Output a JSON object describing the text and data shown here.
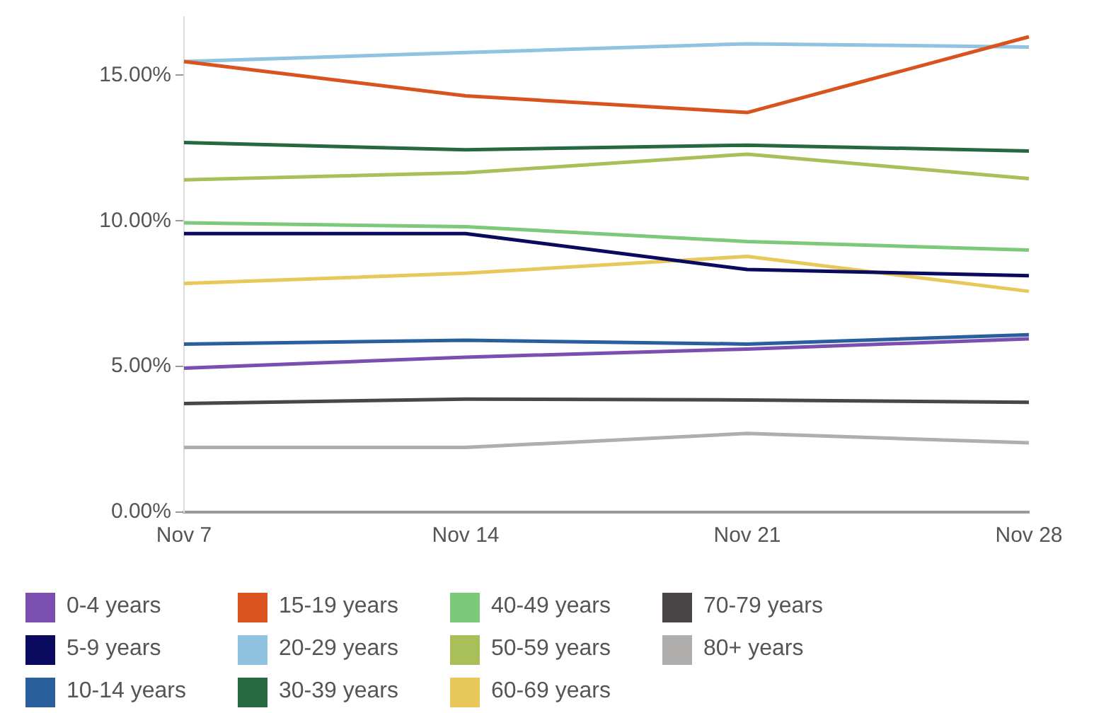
{
  "chart_data": {
    "type": "line",
    "categories": [
      "Nov 7",
      "Nov 14",
      "Nov 21",
      "Nov 28"
    ],
    "ylim": [
      0,
      17
    ],
    "yticks": [
      {
        "value": 0,
        "label": "0.00%"
      },
      {
        "value": 5,
        "label": "5.00%"
      },
      {
        "value": 10,
        "label": "10.00%"
      },
      {
        "value": 15,
        "label": "15.00%"
      }
    ],
    "legend": "bottom",
    "series": [
      {
        "name": "0-4 years",
        "color": "#7b4fb0",
        "values": [
          4.94,
          5.32,
          5.6,
          5.95
        ]
      },
      {
        "name": "5-9 years",
        "color": "#0a0a5e",
        "values": [
          9.56,
          9.56,
          8.33,
          8.12
        ]
      },
      {
        "name": "10-14 years",
        "color": "#2a5f9e",
        "values": [
          5.77,
          5.9,
          5.77,
          6.09
        ]
      },
      {
        "name": "15-19 years",
        "color": "#d9531e",
        "values": [
          15.47,
          14.29,
          13.72,
          16.32
        ]
      },
      {
        "name": "20-29 years",
        "color": "#8fc3e0",
        "values": [
          15.47,
          15.78,
          16.08,
          15.97
        ]
      },
      {
        "name": "30-39 years",
        "color": "#26683f",
        "values": [
          12.69,
          12.44,
          12.6,
          12.4
        ]
      },
      {
        "name": "40-49 years",
        "color": "#7dc97a",
        "values": [
          9.93,
          9.8,
          9.29,
          9.0
        ]
      },
      {
        "name": "50-59 years",
        "color": "#a8bf5a",
        "values": [
          11.41,
          11.65,
          12.29,
          11.45
        ]
      },
      {
        "name": "60-69 years",
        "color": "#e8c85a",
        "values": [
          7.85,
          8.2,
          8.78,
          7.58
        ]
      },
      {
        "name": "70-79 years",
        "color": "#4a4546",
        "values": [
          3.73,
          3.88,
          3.85,
          3.77
        ]
      },
      {
        "name": "80+ years",
        "color": "#b0aeac",
        "values": [
          2.22,
          2.22,
          2.7,
          2.38
        ]
      }
    ]
  }
}
